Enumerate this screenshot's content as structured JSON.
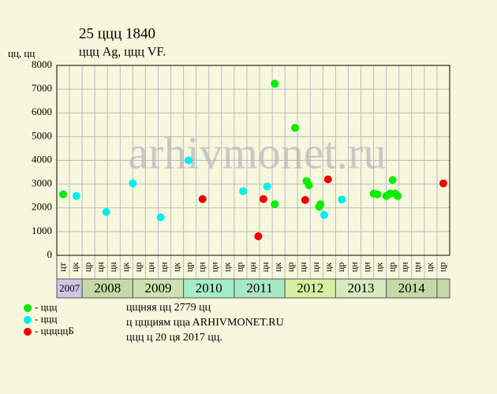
{
  "chart_data": {
    "type": "scatter",
    "title": "25 ццц 1840",
    "subtitle": "ццц Ag, ццц VF.",
    "y_label": "цц, цц",
    "watermark": "arhivmonet.ru",
    "categories": [
      "цт",
      "цк",
      "цр",
      "цн",
      "цн",
      "цк",
      "цр",
      "цн",
      "цн",
      "цк",
      "цр",
      "цн",
      "цн",
      "цк",
      "цр",
      "цн",
      "цн",
      "цк",
      "цр",
      "цн",
      "цн",
      "цк",
      "цр",
      "цн",
      "цн",
      "цк",
      "цр",
      "цн",
      "цн",
      "цк",
      "цр"
    ],
    "years": [
      {
        "label": "2007",
        "quarters": 2,
        "color": "#cdc6e4"
      },
      {
        "label": "2008",
        "quarters": 4,
        "color": "#c6d8a6"
      },
      {
        "label": "2009",
        "quarters": 4,
        "color": "#cfe0b0"
      },
      {
        "label": "2010",
        "quarters": 4,
        "color": "#a4ecca"
      },
      {
        "label": "2011",
        "quarters": 4,
        "color": "#a8e8c4"
      },
      {
        "label": "2012",
        "quarters": 4,
        "color": "#d8f0a4"
      },
      {
        "label": "2013",
        "quarters": 4,
        "color": "#d8e8c0"
      },
      {
        "label": "2014",
        "quarters": 4,
        "color": "#c6d8a6"
      },
      {
        "label": "",
        "quarters": 1,
        "color": "#c6d8a6"
      }
    ],
    "xlim": [
      0,
      31
    ],
    "ylim": [
      0,
      8000
    ],
    "yticks": [
      0,
      1000,
      2000,
      3000,
      4000,
      5000,
      6000,
      7000,
      8000
    ],
    "grid": true,
    "series": [
      {
        "name": "- ццц",
        "color": "#00ee00",
        "x": [
          0.5,
          17.2,
          17.2,
          18.8,
          19.7,
          19.9,
          20.7,
          20.8,
          25.0,
          25.3,
          26.0,
          26.3,
          26.5,
          26.7,
          26.9
        ],
        "values": [
          2570,
          7230,
          2150,
          5370,
          3130,
          2950,
          2050,
          2150,
          2600,
          2570,
          2500,
          2600,
          3170,
          2600,
          2500
        ]
      },
      {
        "name": "- ццц",
        "color": "#00eeee",
        "x": [
          1.55,
          3.9,
          6.0,
          8.2,
          10.4,
          14.7,
          16.6,
          21.1,
          22.5
        ],
        "values": [
          2500,
          1830,
          3030,
          1600,
          4000,
          2700,
          2900,
          1700,
          2350
        ]
      },
      {
        "name": "- цццццБ",
        "color": "#ee0000",
        "x": [
          11.5,
          15.9,
          16.3,
          19.6,
          21.4,
          30.5
        ],
        "values": [
          2370,
          800,
          2370,
          2330,
          3200,
          3030
        ]
      }
    ],
    "notes": [
      "цщняя цц 2779 цц",
      "ц ццциям ццa ARHIVMONET.RU",
      "ццц ц 20 ця 2017 цц."
    ]
  }
}
